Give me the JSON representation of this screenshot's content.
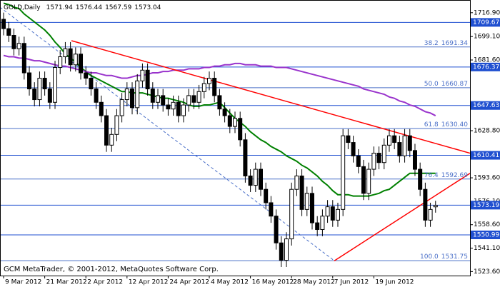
{
  "chart_data": {
    "type": "candlestick",
    "title": "GOLD,Daily",
    "footer": "GCM MetaTrader, © 2001-2012, MetaQuotes Software Corp.",
    "categories": [
      "9 Mar 2012",
      null,
      null,
      null,
      null,
      null,
      null,
      null,
      "21 Mar 2012",
      null,
      null,
      null,
      null,
      null,
      null,
      null,
      "2 Apr 2012",
      null,
      null,
      null,
      null,
      null,
      null,
      null,
      "12 Apr 2012",
      null,
      null,
      null,
      null,
      null,
      null,
      null,
      "24 Apr 2012",
      null,
      null,
      null,
      null,
      null,
      null,
      null,
      "4 May 2012",
      null,
      null,
      null,
      null,
      null,
      null,
      null,
      "16 May 2012",
      null,
      null,
      null,
      null,
      null,
      null,
      null,
      "28 May 2012",
      null,
      null,
      null,
      null,
      null,
      null,
      null,
      "7 Jun 2012",
      null,
      null,
      null,
      null,
      null,
      null,
      null,
      "19 Jun 2012",
      null,
      null,
      null,
      null,
      null,
      null,
      null,
      null,
      null,
      null,
      null,
      null
    ],
    "ohlc": [
      [
        1712,
        1717,
        1700,
        1705
      ],
      [
        1705,
        1710,
        1695,
        1700
      ],
      [
        1700,
        1705,
        1685,
        1690
      ],
      [
        1690,
        1699,
        1685,
        1694
      ],
      [
        1694,
        1699,
        1667,
        1672
      ],
      [
        1672,
        1677,
        1655,
        1660
      ],
      [
        1660,
        1665,
        1647,
        1652
      ],
      [
        1652,
        1673,
        1647,
        1668
      ],
      [
        1668,
        1673,
        1655,
        1660
      ],
      [
        1660,
        1665,
        1645,
        1650
      ],
      [
        1650,
        1681,
        1645,
        1676
      ],
      [
        1676,
        1689,
        1671,
        1684
      ],
      [
        1684,
        1695,
        1679,
        1690
      ],
      [
        1690,
        1695,
        1673,
        1678
      ],
      [
        1678,
        1691,
        1673,
        1686
      ],
      [
        1686,
        1691,
        1667,
        1672
      ],
      [
        1672,
        1677,
        1663,
        1668
      ],
      [
        1668,
        1673,
        1655,
        1660
      ],
      [
        1660,
        1665,
        1645,
        1650
      ],
      [
        1650,
        1655,
        1635,
        1640
      ],
      [
        1640,
        1645,
        1613,
        1618
      ],
      [
        1618,
        1631,
        1613,
        1626
      ],
      [
        1626,
        1645,
        1621,
        1640
      ],
      [
        1640,
        1657,
        1635,
        1652
      ],
      [
        1652,
        1665,
        1647,
        1660
      ],
      [
        1660,
        1665,
        1641,
        1646
      ],
      [
        1646,
        1671,
        1641,
        1666
      ],
      [
        1666,
        1679,
        1661,
        1674
      ],
      [
        1674,
        1679,
        1655,
        1660
      ],
      [
        1660,
        1665,
        1645,
        1650
      ],
      [
        1650,
        1660,
        1645,
        1655
      ],
      [
        1655,
        1660,
        1643,
        1648
      ],
      [
        1648,
        1653,
        1640,
        1645
      ],
      [
        1645,
        1655,
        1640,
        1650
      ],
      [
        1650,
        1655,
        1635,
        1640
      ],
      [
        1640,
        1653,
        1635,
        1648
      ],
      [
        1648,
        1660,
        1643,
        1655
      ],
      [
        1655,
        1660,
        1645,
        1650
      ],
      [
        1650,
        1663,
        1645,
        1658
      ],
      [
        1658,
        1669,
        1653,
        1664
      ],
      [
        1664,
        1673,
        1659,
        1668
      ],
      [
        1668,
        1673,
        1650,
        1655
      ],
      [
        1655,
        1660,
        1640,
        1645
      ],
      [
        1645,
        1650,
        1635,
        1640
      ],
      [
        1640,
        1645,
        1627,
        1632
      ],
      [
        1632,
        1643,
        1627,
        1638
      ],
      [
        1638,
        1643,
        1617,
        1622
      ],
      [
        1622,
        1627,
        1590,
        1595
      ],
      [
        1595,
        1600,
        1583,
        1588
      ],
      [
        1588,
        1605,
        1583,
        1600
      ],
      [
        1600,
        1605,
        1580,
        1585
      ],
      [
        1585,
        1590,
        1570,
        1575
      ],
      [
        1575,
        1580,
        1560,
        1565
      ],
      [
        1565,
        1570,
        1540,
        1545
      ],
      [
        1545,
        1550,
        1527,
        1532
      ],
      [
        1532,
        1553,
        1527,
        1548
      ],
      [
        1548,
        1590,
        1543,
        1585
      ],
      [
        1585,
        1600,
        1580,
        1595
      ],
      [
        1595,
        1600,
        1565,
        1570
      ],
      [
        1570,
        1587,
        1565,
        1582
      ],
      [
        1582,
        1587,
        1555,
        1560
      ],
      [
        1560,
        1565,
        1550,
        1555
      ],
      [
        1555,
        1570,
        1550,
        1565
      ],
      [
        1565,
        1577,
        1560,
        1572
      ],
      [
        1572,
        1577,
        1557,
        1562
      ],
      [
        1562,
        1575,
        1557,
        1570
      ],
      [
        1570,
        1630,
        1565,
        1625
      ],
      [
        1625,
        1630,
        1615,
        1620
      ],
      [
        1620,
        1625,
        1605,
        1610
      ],
      [
        1610,
        1615,
        1597,
        1602
      ],
      [
        1602,
        1607,
        1577,
        1582
      ],
      [
        1582,
        1605,
        1577,
        1600
      ],
      [
        1600,
        1617,
        1595,
        1612
      ],
      [
        1612,
        1617,
        1600,
        1605
      ],
      [
        1605,
        1623,
        1600,
        1618
      ],
      [
        1618,
        1630,
        1613,
        1625
      ],
      [
        1625,
        1630,
        1615,
        1620
      ],
      [
        1620,
        1625,
        1605,
        1610
      ],
      [
        1610,
        1630,
        1605,
        1625
      ],
      [
        1625,
        1630,
        1609,
        1614
      ],
      [
        1614,
        1619,
        1595,
        1600
      ],
      [
        1600,
        1605,
        1580,
        1585
      ],
      [
        1585,
        1590,
        1557,
        1562
      ],
      [
        1562,
        1575,
        1557,
        1570
      ],
      [
        1571.94,
        1576.44,
        1567.59,
        1573.04
      ]
    ],
    "up_color": "#ffffff",
    "down_color": "#000000",
    "lines": [
      {
        "color": "#008000",
        "values": [
          1724,
          1723,
          1721,
          1720,
          1716,
          1713,
          1710,
          1707,
          1704,
          1700,
          1695,
          1691,
          1686,
          1683,
          1680,
          1676,
          1673,
          1670,
          1668,
          1666,
          1664,
          1662,
          1660,
          1658,
          1658,
          1657,
          1657,
          1657,
          1656,
          1655,
          1654,
          1653,
          1653,
          1652,
          1651,
          1650,
          1648,
          1647,
          1647,
          1648,
          1648,
          1649,
          1650,
          1646,
          1642,
          1638,
          1635,
          1632,
          1628,
          1625,
          1622,
          1620,
          1617,
          1615,
          1613,
          1610,
          1608,
          1606,
          1603,
          1601,
          1598,
          1595,
          1591,
          1588,
          1584,
          1581,
          1581,
          1581,
          1580,
          1580,
          1580,
          1580,
          1581,
          1582,
          1584,
          1585,
          1588,
          1591,
          1594,
          1597,
          1597,
          1597,
          1597,
          1597,
          1597
        ]
      },
      {
        "color": "#9933cc",
        "values": [
          1685,
          1684,
          1684,
          1683,
          1683,
          1682,
          1681,
          1681,
          1680,
          1679,
          1678,
          1677,
          1677,
          1676,
          1675,
          1674,
          1673,
          1672,
          1672,
          1671,
          1670,
          1670,
          1669,
          1668,
          1668,
          1669,
          1670,
          1670,
          1671,
          1672,
          1672,
          1673,
          1673,
          1674,
          1674,
          1674,
          1675,
          1675,
          1675,
          1676,
          1676,
          1677,
          1677,
          1678,
          1678,
          1679,
          1679,
          1678,
          1678,
          1678,
          1677,
          1677,
          1677,
          1676,
          1676,
          1676,
          1675,
          1674,
          1673,
          1672,
          1671,
          1670,
          1669,
          1668,
          1667,
          1666,
          1665,
          1664,
          1663,
          1662,
          1660,
          1659,
          1658,
          1657,
          1656,
          1654,
          1653,
          1651,
          1650,
          1648,
          1647,
          1645,
          1643,
          1642,
          1640
        ]
      }
    ],
    "trendlines": [
      {
        "color": "#ff0000",
        "x": [
          13.2,
          90.7
        ],
        "y": [
          1696,
          1612
        ]
      },
      {
        "color": "#ff0000",
        "x": [
          64.3,
          90.7
        ],
        "y": [
          1531.6,
          1597
        ]
      }
    ],
    "fib_line": {
      "color": "#4b70c8",
      "x": [
        -0.7,
        64.3
      ],
      "y": [
        1721,
        1531.75
      ]
    },
    "hlines": [
      1709.67,
      1676.37,
      1647.63,
      1610.41,
      1573.19,
      1550.99
    ],
    "hline_color": "#1f4fd0",
    "fib_levels": [
      {
        "level": 38.2,
        "price": 1691.34
      },
      {
        "level": {
          "value": 50,
          "label": "50.0"
        },
        "price": 1660.87
      },
      {
        "level": 61.8,
        "price": {
          "value": 1630.4,
          "label": "1630.40"
        }
      },
      {
        "level": 76.4,
        "price": 1592.69
      },
      {
        "level": {
          "value": 100,
          "label": "100.0"
        },
        "price": 1531.75
      }
    ],
    "fib_color": "#4b70c8",
    "xlim": [
      -0.7,
      90.7
    ],
    "ylim": [
      1520.6,
      1726.4
    ],
    "yticks": [
      {
        "value": 1716.9,
        "label": "1716.90"
      },
      {
        "value": 1699.1,
        "label": "1699.10"
      },
      {
        "value": 1681.6,
        "label": "1681.60"
      },
      {
        "value": 1628.8,
        "label": "1628.80"
      },
      {
        "value": 1593.6,
        "label": "1593.60"
      },
      {
        "value": 1576.1,
        "label": "1576.10"
      },
      {
        "value": 1558.6,
        "label": "1558.60"
      },
      {
        "value": 1541.1,
        "label": "1541.10"
      },
      {
        "value": 1523.6,
        "label": "1523.60"
      }
    ]
  }
}
